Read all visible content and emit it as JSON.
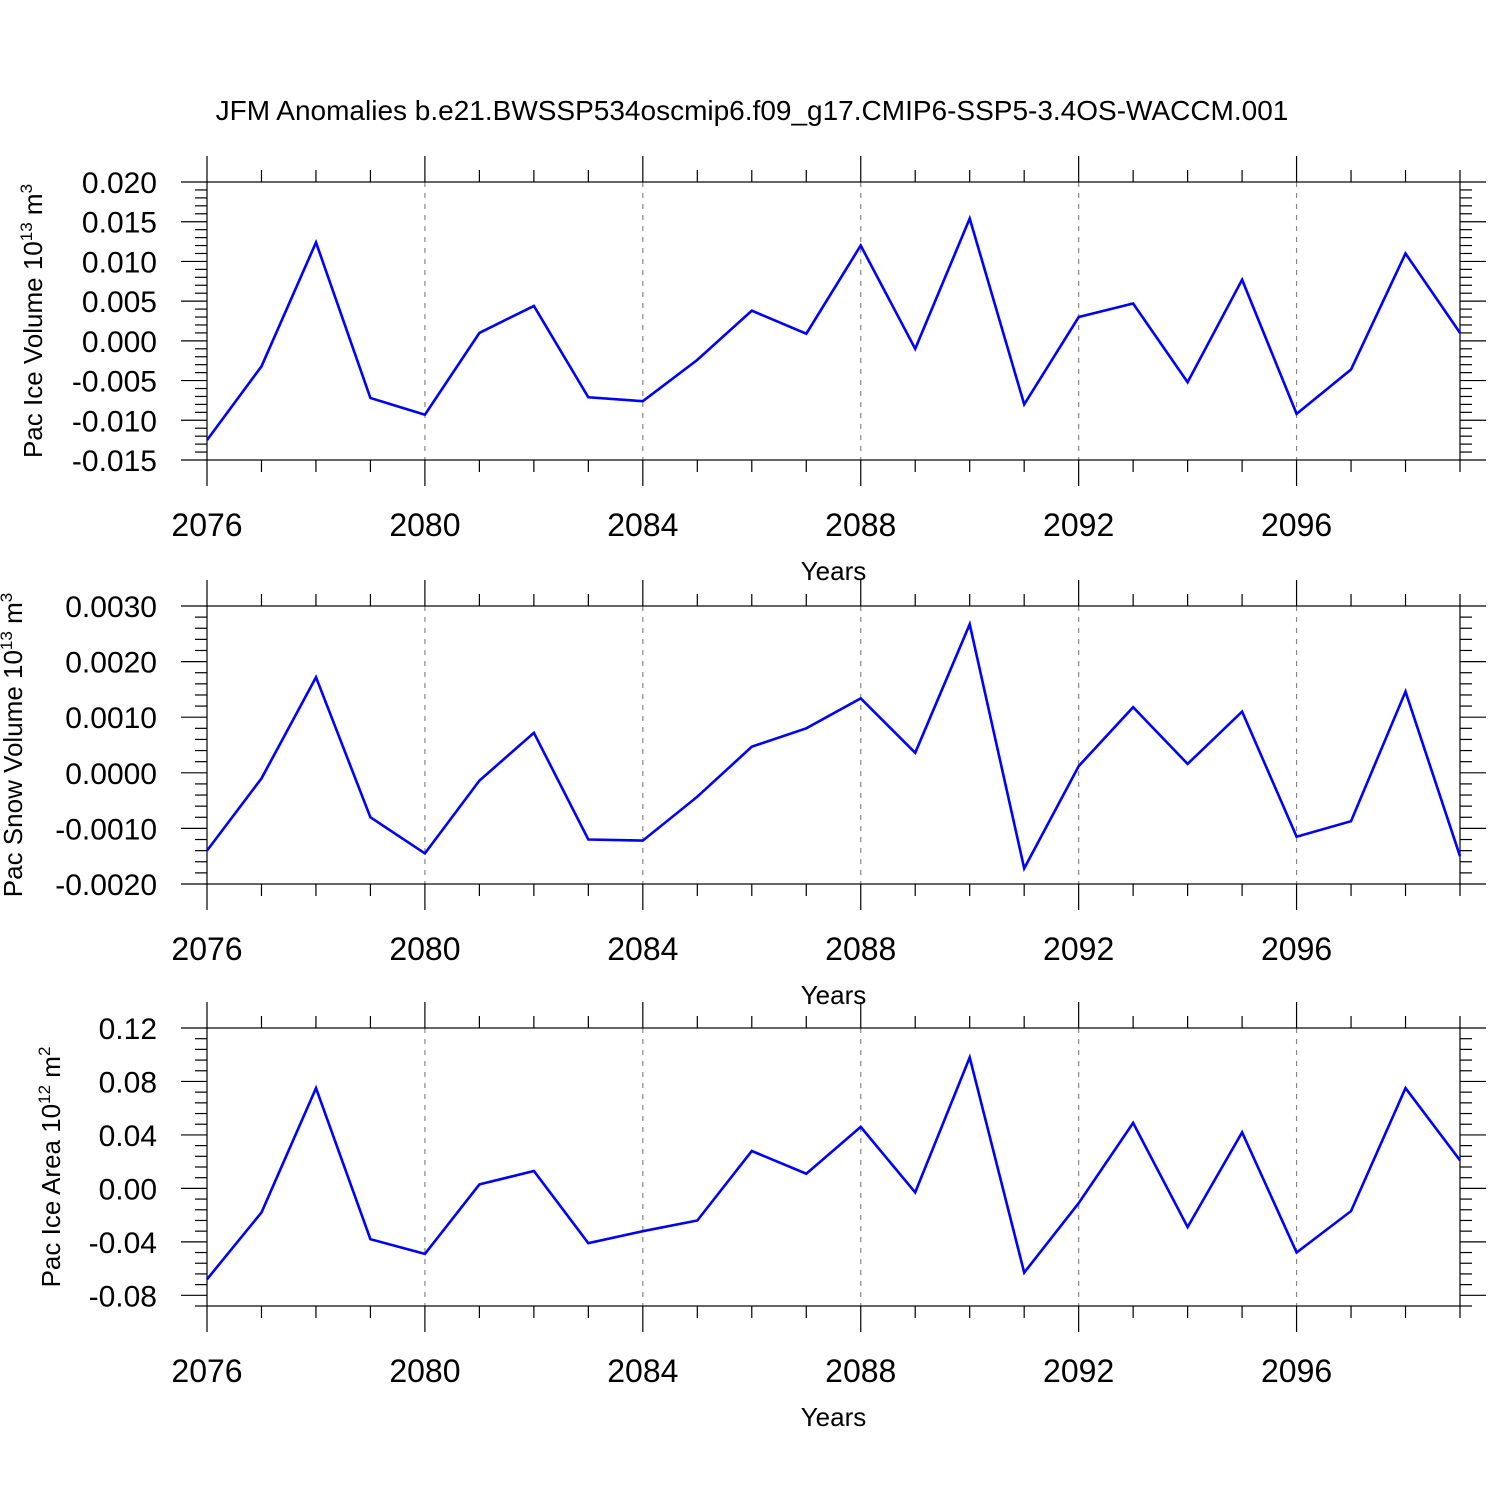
{
  "figure": {
    "title": "JFM Anomalies b.e21.BWSSP534oscmip6.f09_g17.CMIP6-SSP5-3.4OS-WACCM.001"
  },
  "colors": {
    "series": "#0000ff",
    "grid": "#888888",
    "axes": "#000000"
  },
  "chart_data": [
    {
      "type": "line",
      "xlabel": "Years",
      "ylabel": "Pac Ice Volume 10",
      "ylabel_exp": "13",
      "ylabel_unit": " m",
      "ylabel_unit_exp": "3",
      "xlim": [
        2076,
        2099
      ],
      "ylim": [
        -0.015,
        0.02
      ],
      "xticks": [
        2076,
        2080,
        2084,
        2088,
        2092,
        2096
      ],
      "xtick_labels": [
        "2076",
        "2080",
        "2084",
        "2088",
        "2092",
        "2096"
      ],
      "yticks": [
        -0.015,
        -0.01,
        -0.005,
        0.0,
        0.005,
        0.01,
        0.015,
        0.02
      ],
      "ytick_labels": [
        "-0.015",
        "-0.010",
        "-0.005",
        "0.000",
        "0.005",
        "0.010",
        "0.015",
        "0.020"
      ],
      "ydecimals": 3,
      "grid": "vertical dashed at x ticks",
      "x": [
        2076,
        2077,
        2078,
        2079,
        2080,
        2081,
        2082,
        2083,
        2084,
        2085,
        2086,
        2087,
        2088,
        2089,
        2090,
        2091,
        2092,
        2093,
        2094,
        2095,
        2096,
        2097,
        2098,
        2099
      ],
      "series": [
        {
          "values": [
            -0.0125,
            -0.0032,
            0.0124,
            -0.0072,
            -0.0093,
            0.001,
            0.0044,
            -0.0071,
            -0.0076,
            -0.0024,
            0.0038,
            0.0009,
            0.012,
            -0.001,
            0.0154,
            -0.008,
            0.003,
            0.0047,
            -0.0052,
            0.0077,
            -0.0092,
            -0.0036,
            0.011,
            0.001
          ]
        }
      ]
    },
    {
      "type": "line",
      "xlabel": "Years",
      "ylabel": "Pac Snow Volume 10",
      "ylabel_exp": "13",
      "ylabel_unit": " m",
      "ylabel_unit_exp": "3",
      "xlim": [
        2076,
        2099
      ],
      "ylim": [
        -0.002,
        0.003
      ],
      "xticks": [
        2076,
        2080,
        2084,
        2088,
        2092,
        2096
      ],
      "xtick_labels": [
        "2076",
        "2080",
        "2084",
        "2088",
        "2092",
        "2096"
      ],
      "yticks": [
        -0.002,
        -0.001,
        0.0,
        0.001,
        0.002,
        0.003
      ],
      "ytick_labels": [
        "-0.0020",
        "-0.0010",
        "0.0000",
        "0.0010",
        "0.0020",
        "0.0030"
      ],
      "ydecimals": 4,
      "grid": "vertical dashed at x ticks",
      "x": [
        2076,
        2077,
        2078,
        2079,
        2080,
        2081,
        2082,
        2083,
        2084,
        2085,
        2086,
        2087,
        2088,
        2089,
        2090,
        2091,
        2092,
        2093,
        2094,
        2095,
        2096,
        2097,
        2098,
        2099
      ],
      "series": [
        {
          "values": [
            -0.0014,
            -0.0001,
            0.00172,
            -0.0008,
            -0.00145,
            -0.00014,
            0.00072,
            -0.0012,
            -0.00122,
            -0.00043,
            0.00047,
            0.0008,
            0.00134,
            0.00036,
            0.00267,
            -0.00172,
            0.00012,
            0.00118,
            0.00016,
            0.0011,
            -0.00115,
            -0.00087,
            0.00146,
            -0.0015
          ]
        }
      ]
    },
    {
      "type": "line",
      "xlabel": "Years",
      "ylabel": "Pac Ice Area 10",
      "ylabel_exp": "12",
      "ylabel_unit": " m",
      "ylabel_unit_exp": "2",
      "xlim": [
        2076,
        2099
      ],
      "ylim": [
        -0.088,
        0.12
      ],
      "xticks": [
        2076,
        2080,
        2084,
        2088,
        2092,
        2096
      ],
      "xtick_labels": [
        "2076",
        "2080",
        "2084",
        "2088",
        "2092",
        "2096"
      ],
      "yticks": [
        -0.08,
        -0.04,
        0.0,
        0.04,
        0.08,
        0.12
      ],
      "ytick_labels": [
        "-0.08",
        "-0.04",
        "0.00",
        "0.04",
        "0.08",
        "0.12"
      ],
      "ydecimals": 2,
      "grid": "vertical dashed at x ticks",
      "x": [
        2076,
        2077,
        2078,
        2079,
        2080,
        2081,
        2082,
        2083,
        2084,
        2085,
        2086,
        2087,
        2088,
        2089,
        2090,
        2091,
        2092,
        2093,
        2094,
        2095,
        2096,
        2097,
        2098,
        2099
      ],
      "series": [
        {
          "values": [
            -0.068,
            -0.018,
            0.075,
            -0.038,
            -0.049,
            0.003,
            0.013,
            -0.041,
            -0.032,
            -0.024,
            0.028,
            0.011,
            0.046,
            -0.003,
            0.098,
            -0.063,
            -0.011,
            0.049,
            -0.029,
            0.042,
            -0.048,
            -0.017,
            0.075,
            0.021
          ]
        }
      ]
    }
  ]
}
